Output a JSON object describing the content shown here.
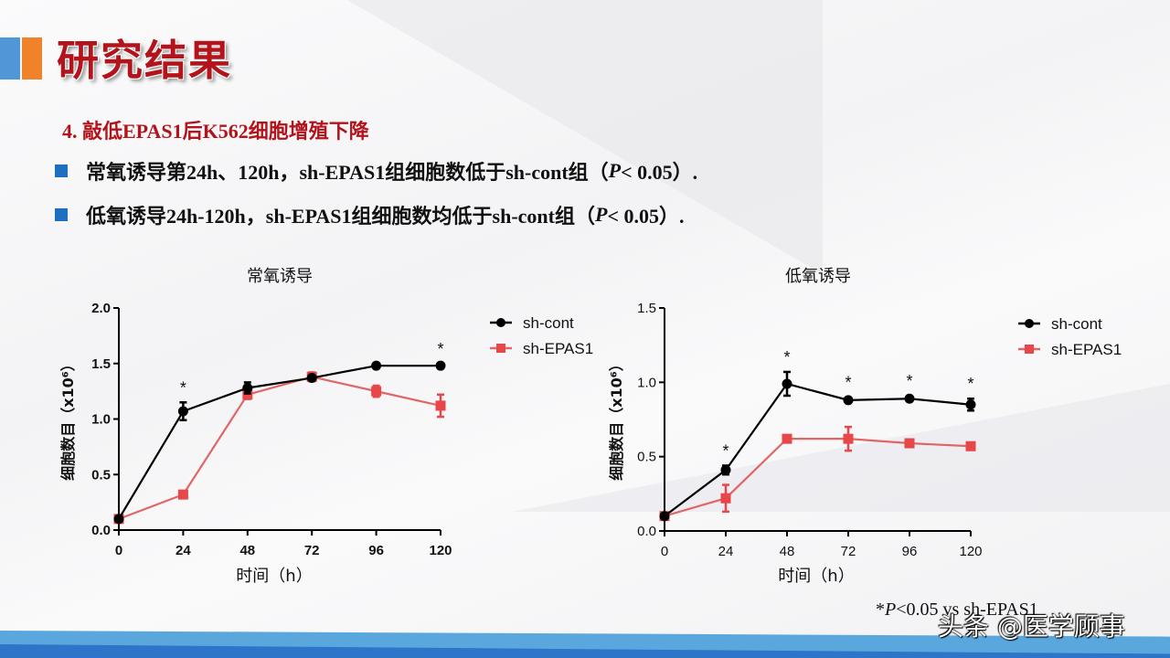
{
  "header": {
    "title": "研究结果",
    "subtitle": "4. 敲低EPAS1后K562细胞增殖下降",
    "accent_colors": [
      "#4f97d6",
      "#f0822a"
    ],
    "title_color": "#b3131b"
  },
  "bullets": [
    {
      "text_before": "常氧诱导第24h、120h，sh-EPAS1组细胞数低于sh-cont组（",
      "p": "P",
      "text_after": " < 0.05）."
    },
    {
      "text_before": "低氧诱导24h-120h，sh-EPAS1组细胞数均低于sh-cont组（",
      "p": "P",
      "text_after": " < 0.05）."
    }
  ],
  "footnote": {
    "prefix": "*",
    "p": "P",
    "text": "<0.05 vs sh-EPAS1"
  },
  "watermark": "头条 @医学顾事",
  "chart_data": [
    {
      "type": "line",
      "title": "常氧诱导",
      "xlabel": "时间（h）",
      "ylabel": "细胞数目（x10⁶）",
      "x": [
        0,
        24,
        48,
        72,
        96,
        120
      ],
      "xticks": [
        "0",
        "24",
        "48",
        "72",
        "96",
        "120"
      ],
      "yticks": [
        "0.0",
        "0.5",
        "1.0",
        "1.5",
        "2.0"
      ],
      "ylim": [
        0,
        2.0
      ],
      "grid": false,
      "legend_position": "right",
      "series": [
        {
          "name": "sh-cont",
          "color": "#000000",
          "marker": "circle",
          "values": [
            0.1,
            1.07,
            1.28,
            1.37,
            1.48,
            1.48
          ],
          "errors": [
            0.01,
            0.08,
            0.05,
            0.02,
            0.01,
            0.01
          ]
        },
        {
          "name": "sh-EPAS1",
          "color": "#e8474a",
          "marker": "square",
          "values": [
            0.1,
            0.32,
            1.22,
            1.38,
            1.25,
            1.12
          ],
          "errors": [
            0.01,
            0.02,
            0.04,
            0.04,
            0.05,
            0.1
          ]
        }
      ],
      "significance": [
        24,
        120
      ],
      "significance_marker": "*"
    },
    {
      "type": "line",
      "title": "低氧诱导",
      "xlabel": "时间（h）",
      "ylabel": "细胞数目（x10⁶）",
      "x": [
        0,
        24,
        48,
        72,
        96,
        120
      ],
      "xticks": [
        "0",
        "24",
        "48",
        "72",
        "96",
        "120"
      ],
      "yticks": [
        "0.0",
        "0.5",
        "1.0",
        "1.5"
      ],
      "ylim": [
        0,
        1.5
      ],
      "grid": false,
      "legend_position": "right",
      "series": [
        {
          "name": "sh-cont",
          "color": "#000000",
          "marker": "circle",
          "values": [
            0.1,
            0.41,
            0.99,
            0.88,
            0.89,
            0.85
          ],
          "errors": [
            0.01,
            0.03,
            0.08,
            0.01,
            0.01,
            0.04
          ]
        },
        {
          "name": "sh-EPAS1",
          "color": "#e8474a",
          "marker": "square",
          "values": [
            0.1,
            0.22,
            0.62,
            0.62,
            0.59,
            0.57
          ],
          "errors": [
            0.01,
            0.09,
            0.02,
            0.08,
            0.01,
            0.01
          ]
        }
      ],
      "significance": [
        24,
        48,
        72,
        96,
        120
      ],
      "significance_marker": "*"
    }
  ]
}
